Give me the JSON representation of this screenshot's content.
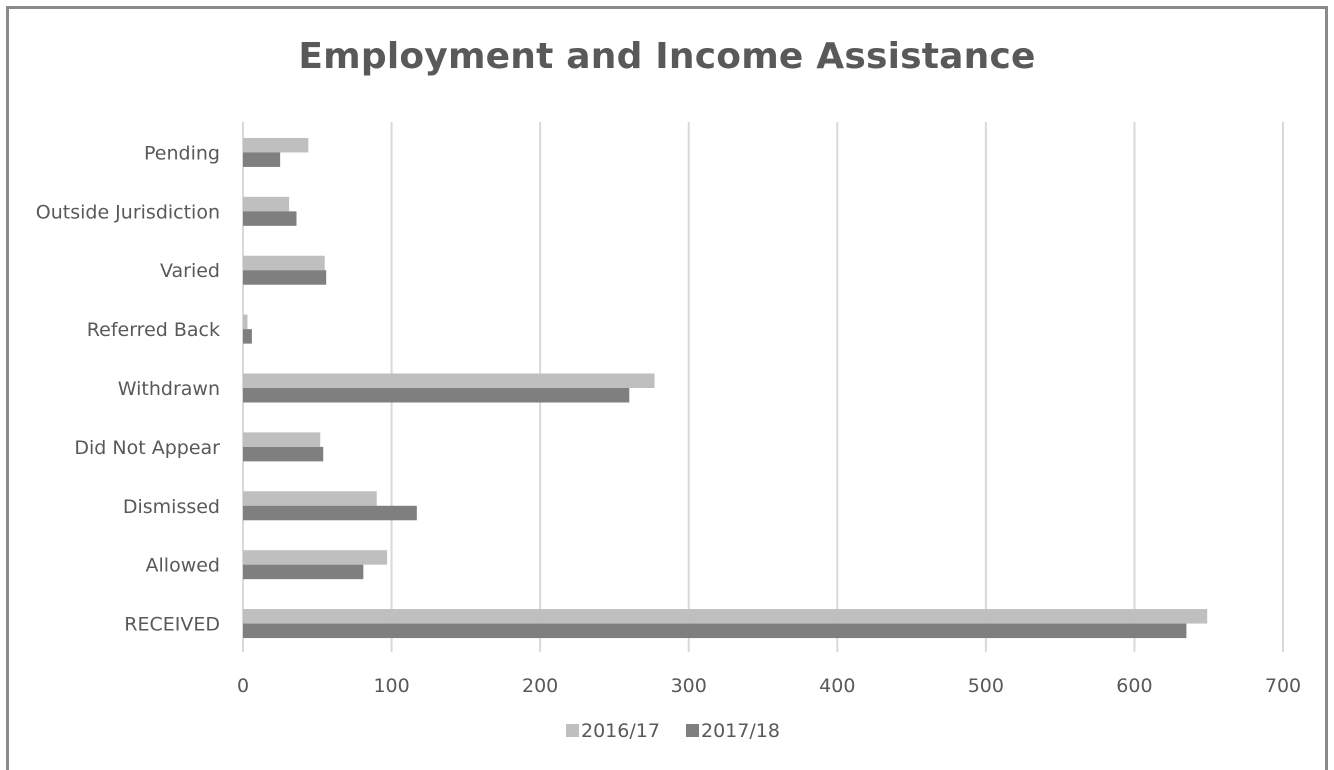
{
  "chart_data": {
    "type": "bar",
    "orientation": "horizontal",
    "title": "Employment and Income Assistance",
    "categories": [
      "RECEIVED",
      "Allowed",
      "Dismissed",
      "Did Not Appear",
      "Withdrawn",
      "Referred Back",
      "Varied",
      "Outside Jurisdiction",
      "Pending"
    ],
    "series": [
      {
        "name": "2016/17",
        "color": "#bfbfbf",
        "values": [
          649,
          97,
          90,
          52,
          277,
          3,
          55,
          31,
          44
        ]
      },
      {
        "name": "2017/18",
        "color": "#7f7f7f",
        "values": [
          635,
          81,
          117,
          54,
          260,
          6,
          56,
          36,
          25
        ]
      }
    ],
    "xlim": [
      0,
      700
    ],
    "xticks": [
      "0",
      "100",
      "200",
      "300",
      "400",
      "500",
      "600",
      "700"
    ],
    "grid": "vertical",
    "legend": "bottom"
  }
}
